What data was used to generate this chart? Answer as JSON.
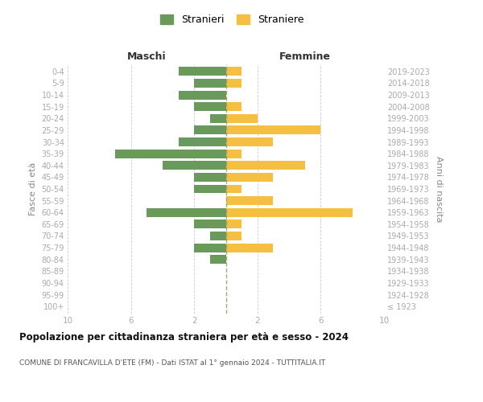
{
  "age_groups": [
    "100+",
    "95-99",
    "90-94",
    "85-89",
    "80-84",
    "75-79",
    "70-74",
    "65-69",
    "60-64",
    "55-59",
    "50-54",
    "45-49",
    "40-44",
    "35-39",
    "30-34",
    "25-29",
    "20-24",
    "15-19",
    "10-14",
    "5-9",
    "0-4"
  ],
  "birth_years": [
    "≤ 1923",
    "1924-1928",
    "1929-1933",
    "1934-1938",
    "1939-1943",
    "1944-1948",
    "1949-1953",
    "1954-1958",
    "1959-1963",
    "1964-1968",
    "1969-1973",
    "1974-1978",
    "1979-1983",
    "1984-1988",
    "1989-1993",
    "1994-1998",
    "1999-2003",
    "2004-2008",
    "2009-2013",
    "2014-2018",
    "2019-2023"
  ],
  "maschi": [
    0,
    0,
    0,
    0,
    1,
    2,
    1,
    2,
    5,
    0,
    2,
    2,
    4,
    7,
    3,
    2,
    1,
    2,
    3,
    2,
    3
  ],
  "femmine": [
    0,
    0,
    0,
    0,
    0,
    3,
    1,
    1,
    8,
    3,
    1,
    3,
    5,
    1,
    3,
    6,
    2,
    1,
    0,
    1,
    1
  ],
  "maschi_color": "#6a9a5b",
  "femmine_color": "#f5bf42",
  "title": "Popolazione per cittadinanza straniera per età e sesso - 2024",
  "subtitle": "COMUNE DI FRANCAVILLA D'ETE (FM) - Dati ISTAT al 1° gennaio 2024 - TUTTITALIA.IT",
  "ylabel_left": "Fasce di età",
  "ylabel_right": "Anni di nascita",
  "xlabel_maschi": "Maschi",
  "xlabel_femmine": "Femmine",
  "xlim": 10,
  "legend_stranieri": "Stranieri",
  "legend_straniere": "Straniere",
  "background_color": "#ffffff",
  "grid_color": "#cccccc",
  "bar_height": 0.75,
  "tick_color": "#aaaaaa",
  "label_color": "#888888",
  "header_color": "#333333"
}
